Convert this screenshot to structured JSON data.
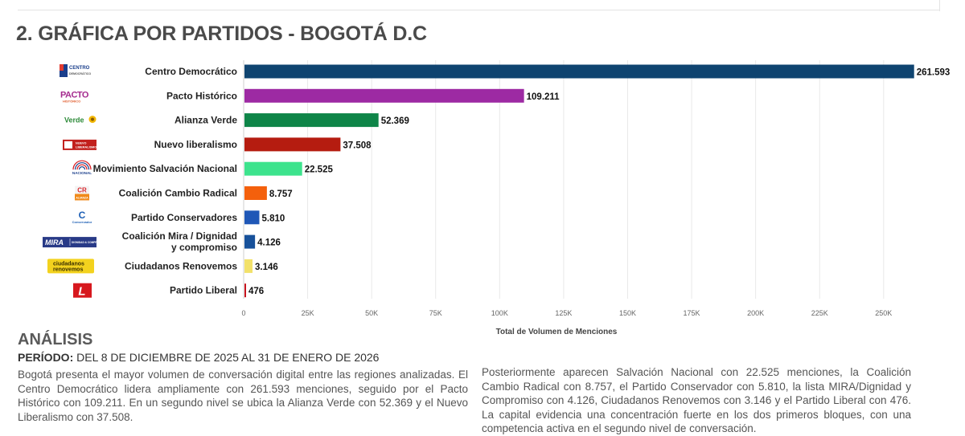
{
  "page": {
    "title": "2. GRÁFICA POR PARTIDOS - BOGOTÁ D.C"
  },
  "logos": [
    {
      "name": "centro-democratico",
      "lines": [
        "CENTRO",
        "DEMOCRÁTICO"
      ],
      "color": "#1b3f8c"
    },
    {
      "name": "pacto-historico",
      "lines": [
        "PACTO",
        "HISTÓRICO"
      ],
      "color": "#a42a8e"
    },
    {
      "name": "alianza-verde",
      "lines": [
        "Verde"
      ],
      "color": "#2e8b3a"
    },
    {
      "name": "nuevo-liberalismo",
      "lines": [
        "NUEVO",
        "LIBERALISMO"
      ],
      "color": "#c2201d"
    },
    {
      "name": "salvacion-nacional",
      "lines": [
        "NACIONAL"
      ],
      "color": "#1b3f8c"
    },
    {
      "name": "cambio-radical",
      "lines": [
        "CR",
        "ALIANZA"
      ],
      "color": "#d8282f"
    },
    {
      "name": "conservador",
      "lines": [
        "C",
        "Conservador"
      ],
      "color": "#1d5fb5"
    },
    {
      "name": "mira-dignidad",
      "lines": [
        "MIRA",
        "DIGNIDAD & COMPROMISO"
      ],
      "color": "#283a87"
    },
    {
      "name": "ciudadanos-renovemos",
      "lines": [
        "ciudadanos",
        "renovemos"
      ],
      "color": "#e8c21c"
    },
    {
      "name": "partido-liberal",
      "lines": [
        "L"
      ],
      "color": "#d7181e"
    }
  ],
  "chart_data": {
    "type": "bar",
    "orientation": "horizontal",
    "categories": [
      "Centro Democrático",
      "Pacto Histórico",
      "Alianza Verde",
      "Nuevo liberalismo",
      "Movimiento Salvación Nacional",
      "Coalición Cambio Radical",
      "Partido Conservadores",
      [
        "Coalición Mira / Dignidad",
        "y compromiso"
      ],
      "Ciudadanos Renovemos",
      "Partido Liberal"
    ],
    "values": [
      261593,
      109211,
      52369,
      37508,
      22525,
      8757,
      5810,
      4126,
      3146,
      476
    ],
    "value_labels": [
      "261.593",
      "109.211",
      "52.369",
      "37.508",
      "22.525",
      "8.757",
      "5.810",
      "4.126",
      "3.146",
      "476"
    ],
    "colors": [
      "#0f4470",
      "#9d2aa3",
      "#0e8548",
      "#b51c10",
      "#3de38d",
      "#f4600c",
      "#1f57b7",
      "#17519a",
      "#f2e16a",
      "#c8141e"
    ],
    "xlim": [
      0,
      262000
    ],
    "xticks": [
      0,
      25000,
      50000,
      75000,
      100000,
      125000,
      150000,
      175000,
      200000,
      225000,
      250000
    ],
    "xtick_labels": [
      "0",
      "25K",
      "50K",
      "75K",
      "100K",
      "125K",
      "150K",
      "175K",
      "200K",
      "225K",
      "250K"
    ],
    "xlabel": "Total de Volumen de Menciones",
    "ylabel": "",
    "grid": true
  },
  "analysis": {
    "heading": "ANÁLISIS",
    "period_label": "PERÍODO:",
    "period_value": " DEL 8 DE DICIEMBRE DE 2025 AL 31 DE ENERO DE 2026",
    "paragraph_left": "Bogotá presenta el mayor volumen de conversación digital entre las regiones analizadas. El Centro Democrático lidera ampliamente con 261.593 menciones, seguido por el Pacto Histórico con 109.211. En un segundo nivel se ubica la Alianza Verde con 52.369 y el Nuevo Liberalismo con 37.508.",
    "paragraph_right": "Posteriormente aparecen Salvación Nacional con 22.525 menciones, la Coalición Cambio Radical con 8.757, el Partido Conservador con 5.810, la lista MIRA/Dignidad y Compromiso con 4.126, Ciudadanos Renovemos con 3.146 y el Partido Liberal con 476. La capital evidencia una concentración fuerte en los dos primeros bloques, con una competencia activa en el segundo nivel de conversación."
  }
}
